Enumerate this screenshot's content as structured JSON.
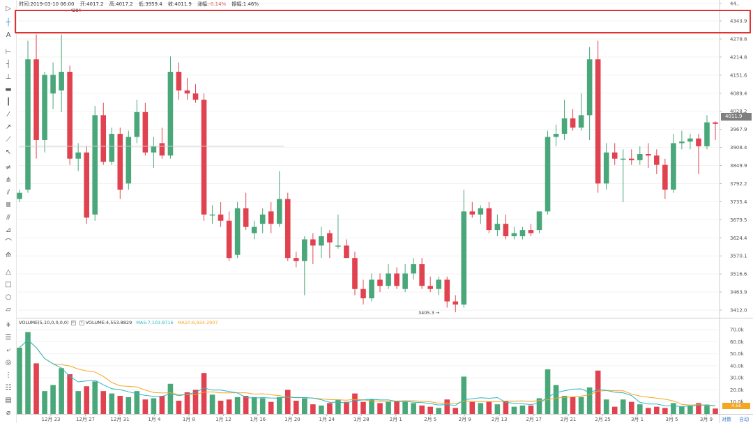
{
  "header": {
    "time_label": "时间:",
    "time": "2019-03-10 06:00",
    "open_label": "开:",
    "open": "4017.2",
    "high_label": "高:",
    "high": "4017.2",
    "low_label": "低:",
    "low": "3959.4",
    "close_label": "收:",
    "close": "4011.9",
    "change_label": "涨幅:",
    "change": "-0.14%",
    "amplitude_label": "振幅:",
    "amplitude": "1.46%"
  },
  "toolbar": {
    "icons": [
      "cursor-icon",
      "crosshair-icon",
      "text-icon",
      "horizontal-line-icon",
      "horizontal-ray-icon",
      "horizontal-segment-icon",
      "price-label-icon",
      "vertical-line-icon",
      "trend-line-icon",
      "ray-icon",
      "extended-line-icon",
      "arrow-line-icon",
      "parallel-channel-icon",
      "pitchfork-icon",
      "regression-icon",
      "time-cycle-icon",
      "fib-retracement-icon",
      "fib-fan-icon",
      "fib-arc-icon",
      "fib-extension-icon",
      "triangle-icon",
      "rectangle-icon",
      "circle-icon",
      "parallelogram-icon",
      "indicator-settings-icon",
      "indicator-list-icon",
      "measure-icon",
      "target-icon",
      "compare-icon",
      "alert-icon",
      "template-icon",
      "magnet-icon"
    ]
  },
  "price_label": "4011.9",
  "volume_label": "4.5k",
  "volume_legend": {
    "name": "VOLUME(5,10,0,0,0,0)",
    "value": "VOLUME:4,553.8829",
    "ma5": "MA5:7,103.8716",
    "ma10": "MA10:6,924.2907"
  },
  "scale_controls": {
    "log": "对数",
    "auto": "自动"
  },
  "colors": {
    "up": "#4aa77a",
    "down": "#e0424f",
    "ma5": "#2ab7c2",
    "ma10": "#f5a623",
    "selection": "#e03232"
  },
  "chart_data": {
    "type": "candlestick",
    "y_ticks": [
      "44..",
      "4343.9",
      "4278.8",
      "4214.8",
      "4151.6",
      "4089.4",
      "4028.2",
      "3967.9",
      "3908.4",
      "3849.9",
      "3792.2",
      "3735.4",
      "3679.5",
      "3624.4",
      "3570.1",
      "3516.6",
      "3463.9",
      "3412.0"
    ],
    "ylim": [
      3412.0,
      4343.9
    ],
    "x_ticks": [
      "12月 23",
      "12月 27",
      "12月 31",
      "1月 4",
      "1月 8",
      "1月 12",
      "1月 16",
      "1月 20",
      "1月 24",
      "1月 28",
      "2月 1",
      "2月 5",
      "2月 9",
      "2月 13",
      "2月 17",
      "2月 21",
      "2月 25",
      "3月 1",
      "3月 5",
      "3月 9"
    ],
    "annotations": {
      "low_marker": "3405.3",
      "high_marker": "4284"
    },
    "volume_y_ticks": [
      "70.0k",
      "60.0k",
      "50.0k",
      "40.0k",
      "30.0k",
      "20.0k",
      "10.0k"
    ],
    "volume_ylim": [
      0,
      70000
    ],
    "candles": [
      {
        "o": 3770,
        "h": 3800,
        "l": 3760,
        "c": 3790,
        "v": 55000
      },
      {
        "o": 3800,
        "h": 4280,
        "l": 3790,
        "c": 4220,
        "v": 68000
      },
      {
        "o": 4220,
        "h": 4300,
        "l": 3900,
        "c": 3960,
        "v": 42000
      },
      {
        "o": 3960,
        "h": 4180,
        "l": 3920,
        "c": 4170,
        "v": 19000
      },
      {
        "o": 4110,
        "h": 4210,
        "l": 4060,
        "c": 4170,
        "v": 24000
      },
      {
        "o": 4120,
        "h": 4300,
        "l": 4050,
        "c": 4180,
        "v": 38000
      },
      {
        "o": 4180,
        "h": 4200,
        "l": 3880,
        "c": 3900,
        "v": 33000
      },
      {
        "o": 3900,
        "h": 3950,
        "l": 3860,
        "c": 3920,
        "v": 19000
      },
      {
        "o": 3920,
        "h": 3940,
        "l": 3690,
        "c": 3710,
        "v": 23000
      },
      {
        "o": 3720,
        "h": 4070,
        "l": 3700,
        "c": 4040,
        "v": 27000
      },
      {
        "o": 4040,
        "h": 4080,
        "l": 3880,
        "c": 3890,
        "v": 19000
      },
      {
        "o": 3890,
        "h": 4000,
        "l": 3880,
        "c": 3980,
        "v": 17000
      },
      {
        "o": 3980,
        "h": 4000,
        "l": 3770,
        "c": 3800,
        "v": 15000
      },
      {
        "o": 3820,
        "h": 3990,
        "l": 3800,
        "c": 3970,
        "v": 14000
      },
      {
        "o": 3970,
        "h": 4090,
        "l": 3950,
        "c": 4050,
        "v": 19000
      },
      {
        "o": 4050,
        "h": 4080,
        "l": 3910,
        "c": 3920,
        "v": 12000
      },
      {
        "o": 3920,
        "h": 3970,
        "l": 3870,
        "c": 3940,
        "v": 13000
      },
      {
        "o": 3950,
        "h": 4000,
        "l": 3900,
        "c": 3910,
        "v": 15000
      },
      {
        "o": 3910,
        "h": 4230,
        "l": 3900,
        "c": 4180,
        "v": 25000
      },
      {
        "o": 4180,
        "h": 4210,
        "l": 4090,
        "c": 4120,
        "v": 11000
      },
      {
        "o": 4120,
        "h": 4160,
        "l": 4090,
        "c": 4110,
        "v": 18000
      },
      {
        "o": 4110,
        "h": 4140,
        "l": 4080,
        "c": 4090,
        "v": 20000
      },
      {
        "o": 4090,
        "h": 4110,
        "l": 3700,
        "c": 3720,
        "v": 34000
      },
      {
        "o": 3720,
        "h": 3750,
        "l": 3690,
        "c": 3720,
        "v": 16000
      },
      {
        "o": 3720,
        "h": 3760,
        "l": 3680,
        "c": 3700,
        "v": 11000
      },
      {
        "o": 3700,
        "h": 3730,
        "l": 3570,
        "c": 3580,
        "v": 12000
      },
      {
        "o": 3590,
        "h": 3760,
        "l": 3580,
        "c": 3740,
        "v": 14000
      },
      {
        "o": 3740,
        "h": 3790,
        "l": 3670,
        "c": 3680,
        "v": 15000
      },
      {
        "o": 3660,
        "h": 3700,
        "l": 3640,
        "c": 3680,
        "v": 14000
      },
      {
        "o": 3690,
        "h": 3740,
        "l": 3660,
        "c": 3720,
        "v": 13000
      },
      {
        "o": 3730,
        "h": 3760,
        "l": 3660,
        "c": 3690,
        "v": 10000
      },
      {
        "o": 3690,
        "h": 3860,
        "l": 3680,
        "c": 3770,
        "v": 14000
      },
      {
        "o": 3770,
        "h": 3790,
        "l": 3570,
        "c": 3580,
        "v": 20000
      },
      {
        "o": 3580,
        "h": 3600,
        "l": 3550,
        "c": 3570,
        "v": 11000
      },
      {
        "o": 3570,
        "h": 3650,
        "l": 3460,
        "c": 3640,
        "v": 13000
      },
      {
        "o": 3640,
        "h": 3660,
        "l": 3560,
        "c": 3620,
        "v": 8000
      },
      {
        "o": 3620,
        "h": 3680,
        "l": 3580,
        "c": 3650,
        "v": 7000
      },
      {
        "o": 3660,
        "h": 3670,
        "l": 3580,
        "c": 3630,
        "v": 9000
      },
      {
        "o": 3620,
        "h": 3720,
        "l": 3610,
        "c": 3620,
        "v": 12000
      },
      {
        "o": 3620,
        "h": 3640,
        "l": 3580,
        "c": 3580,
        "v": 10000
      },
      {
        "o": 3580,
        "h": 3600,
        "l": 3460,
        "c": 3480,
        "v": 17000
      },
      {
        "o": 3480,
        "h": 3510,
        "l": 3430,
        "c": 3450,
        "v": 10000
      },
      {
        "o": 3450,
        "h": 3530,
        "l": 3440,
        "c": 3510,
        "v": 12000
      },
      {
        "o": 3510,
        "h": 3530,
        "l": 3470,
        "c": 3490,
        "v": 9000
      },
      {
        "o": 3490,
        "h": 3560,
        "l": 3480,
        "c": 3530,
        "v": 10000
      },
      {
        "o": 3530,
        "h": 3550,
        "l": 3480,
        "c": 3490,
        "v": 11000
      },
      {
        "o": 3480,
        "h": 3560,
        "l": 3470,
        "c": 3530,
        "v": 10000
      },
      {
        "o": 3530,
        "h": 3580,
        "l": 3510,
        "c": 3560,
        "v": 9000
      },
      {
        "o": 3560,
        "h": 3580,
        "l": 3480,
        "c": 3490,
        "v": 7000
      },
      {
        "o": 3490,
        "h": 3520,
        "l": 3470,
        "c": 3480,
        "v": 6000
      },
      {
        "o": 3480,
        "h": 3520,
        "l": 3460,
        "c": 3510,
        "v": 5000
      },
      {
        "o": 3510,
        "h": 3520,
        "l": 3420,
        "c": 3440,
        "v": 12000
      },
      {
        "o": 3440,
        "h": 3460,
        "l": 3405,
        "c": 3430,
        "v": 5000
      },
      {
        "o": 3430,
        "h": 3800,
        "l": 3420,
        "c": 3730,
        "v": 31000
      },
      {
        "o": 3730,
        "h": 3760,
        "l": 3710,
        "c": 3720,
        "v": 10000
      },
      {
        "o": 3720,
        "h": 3750,
        "l": 3690,
        "c": 3740,
        "v": 9000
      },
      {
        "o": 3740,
        "h": 3760,
        "l": 3660,
        "c": 3670,
        "v": 10000
      },
      {
        "o": 3670,
        "h": 3720,
        "l": 3650,
        "c": 3690,
        "v": 8000
      },
      {
        "o": 3690,
        "h": 3720,
        "l": 3640,
        "c": 3650,
        "v": 11000
      },
      {
        "o": 3650,
        "h": 3680,
        "l": 3640,
        "c": 3660,
        "v": 6000
      },
      {
        "o": 3650,
        "h": 3680,
        "l": 3640,
        "c": 3670,
        "v": 7000
      },
      {
        "o": 3670,
        "h": 3690,
        "l": 3650,
        "c": 3660,
        "v": 7000
      },
      {
        "o": 3670,
        "h": 3730,
        "l": 3660,
        "c": 3730,
        "v": 13000
      },
      {
        "o": 3730,
        "h": 3990,
        "l": 3720,
        "c": 3970,
        "v": 37000
      },
      {
        "o": 3970,
        "h": 4010,
        "l": 3940,
        "c": 3980,
        "v": 24000
      },
      {
        "o": 3980,
        "h": 4090,
        "l": 3960,
        "c": 4030,
        "v": 15000
      },
      {
        "o": 4030,
        "h": 4060,
        "l": 3990,
        "c": 4000,
        "v": 14000
      },
      {
        "o": 4000,
        "h": 4110,
        "l": 3990,
        "c": 4040,
        "v": 14000
      },
      {
        "o": 4040,
        "h": 4260,
        "l": 3960,
        "c": 4220,
        "v": 22000
      },
      {
        "o": 4220,
        "h": 4280,
        "l": 3790,
        "c": 3820,
        "v": 36000
      },
      {
        "o": 3820,
        "h": 3950,
        "l": 3800,
        "c": 3920,
        "v": 12000
      },
      {
        "o": 3920,
        "h": 3950,
        "l": 3880,
        "c": 3900,
        "v": 6000
      },
      {
        "o": 3900,
        "h": 3930,
        "l": 3760,
        "c": 3900,
        "v": 12000
      },
      {
        "o": 3900,
        "h": 3930,
        "l": 3880,
        "c": 3895,
        "v": 10000
      },
      {
        "o": 3895,
        "h": 3940,
        "l": 3880,
        "c": 3915,
        "v": 8000
      },
      {
        "o": 3915,
        "h": 3950,
        "l": 3870,
        "c": 3910,
        "v": 5000
      },
      {
        "o": 3910,
        "h": 3930,
        "l": 3850,
        "c": 3880,
        "v": 6000
      },
      {
        "o": 3880,
        "h": 3900,
        "l": 3770,
        "c": 3800,
        "v": 5000
      },
      {
        "o": 3800,
        "h": 3980,
        "l": 3790,
        "c": 3950,
        "v": 9000
      },
      {
        "o": 3950,
        "h": 3990,
        "l": 3930,
        "c": 3955,
        "v": 6000
      },
      {
        "o": 3955,
        "h": 3980,
        "l": 3930,
        "c": 3965,
        "v": 7000
      },
      {
        "o": 3965,
        "h": 3980,
        "l": 3850,
        "c": 3940,
        "v": 9000
      },
      {
        "o": 3940,
        "h": 4040,
        "l": 3930,
        "c": 4017,
        "v": 7000
      },
      {
        "o": 4017,
        "h": 4020,
        "l": 3960,
        "c": 4012,
        "v": 4500
      }
    ]
  }
}
